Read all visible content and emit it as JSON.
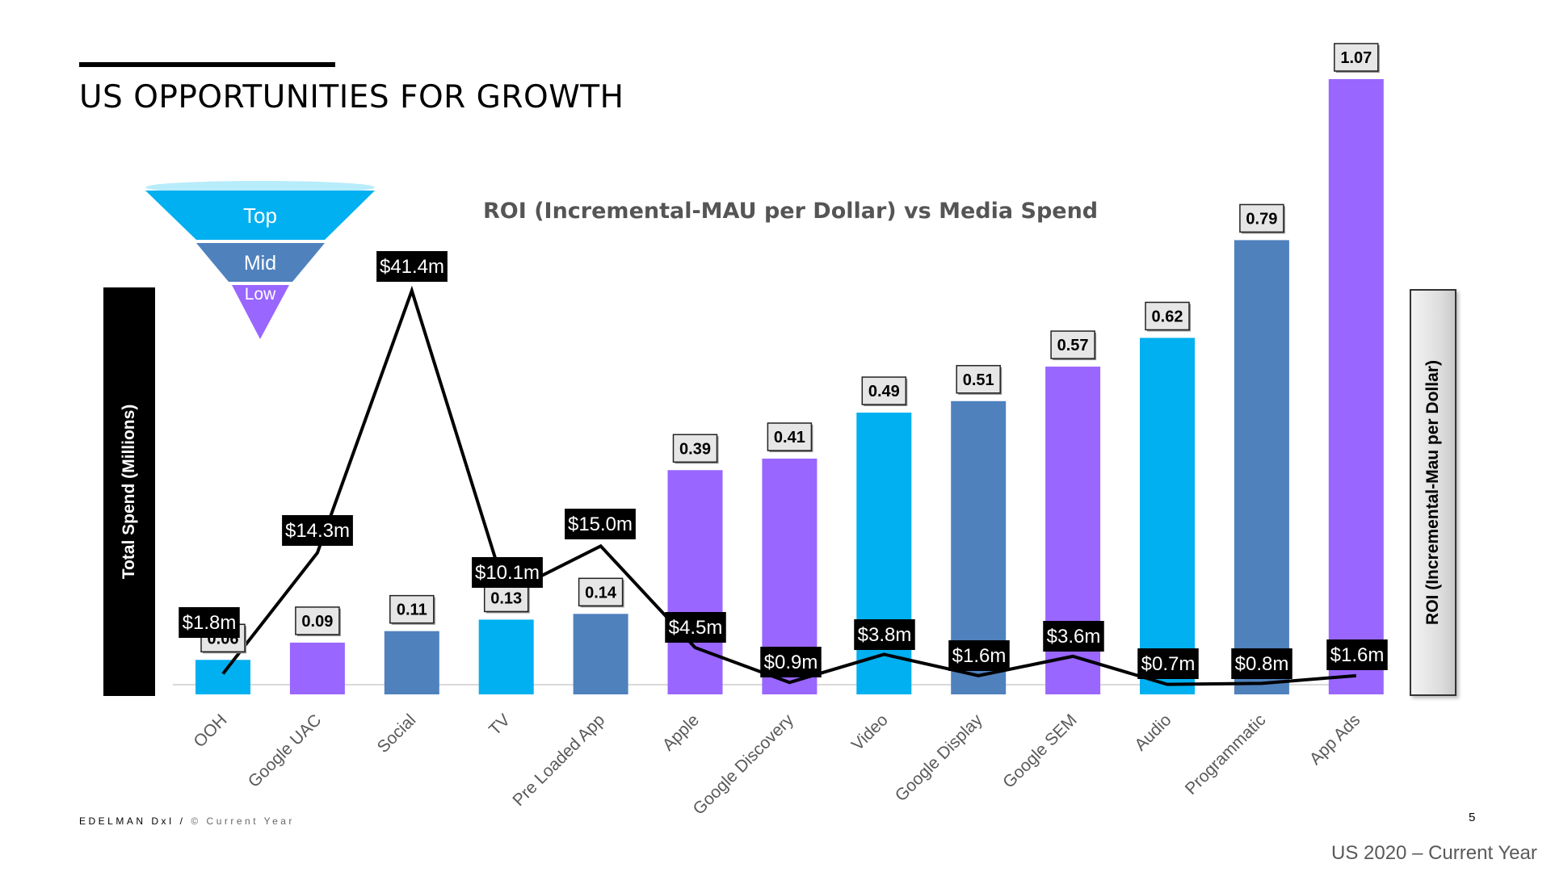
{
  "page": {
    "title": "US OPPORTUNITIES FOR GROWTH",
    "footer_brand": "EDELMAN DxI /",
    "footer_copyright": "© Current Year",
    "page_number": "5",
    "footer_note": "US 2020 – Current Year"
  },
  "funnel": {
    "levels": [
      "Top",
      "Mid",
      "Low"
    ],
    "colors": [
      "#00b0f0",
      "#4f81bd",
      "#9966ff"
    ]
  },
  "colors": {
    "top": "#00b0f0",
    "mid": "#4f81bd",
    "low": "#9966ff",
    "line": "#000000",
    "title": "#555555"
  },
  "chart_data": {
    "type": "bar",
    "title": "ROI (Incremental-MAU per Dollar) vs Media Spend",
    "left_axis_label": "Total Spend (Millions)",
    "right_axis_label": "ROI (Incremental-Mau per Dollar)",
    "categories": [
      "OOH",
      "Google UAC",
      "Social",
      "TV",
      "Pre Loaded App",
      "Apple",
      "Google Discovery",
      "Video",
      "Google Display",
      "Google SEM",
      "Audio",
      "Programmatic",
      "App Ads"
    ],
    "funnel_stage": [
      "Top",
      "Low",
      "Mid",
      "Top",
      "Mid",
      "Low",
      "Low",
      "Top",
      "Mid",
      "Low",
      "Top",
      "Mid",
      "Low"
    ],
    "series": [
      {
        "name": "ROI (Incremental-MAU per Dollar)",
        "type": "bar",
        "axis": "right",
        "values": [
          0.06,
          0.09,
          0.11,
          0.13,
          0.14,
          0.39,
          0.41,
          0.49,
          0.51,
          0.57,
          0.62,
          0.79,
          1.07
        ],
        "labels": [
          "0.06",
          "0.09",
          "0.11",
          "0.13",
          "0.14",
          "0.39",
          "0.41",
          "0.49",
          "0.51",
          "0.57",
          "0.62",
          "0.79",
          "1.07"
        ]
      },
      {
        "name": "Total Spend (Millions)",
        "type": "line",
        "axis": "left",
        "values": [
          1.8,
          14.3,
          41.4,
          10.1,
          15.0,
          4.5,
          0.9,
          3.8,
          1.6,
          3.6,
          0.7,
          0.8,
          1.6
        ],
        "labels": [
          "$1.8m",
          "$14.3m",
          "$41.4m",
          "$10.1m",
          "$15.0m",
          "$4.5m",
          "$0.9m",
          "$3.8m",
          "$1.6m",
          "$3.6m",
          "$0.7m",
          "$0.8m",
          "$1.6m"
        ]
      }
    ],
    "ylim_left": [
      0,
      42
    ],
    "ylim_right": [
      0,
      1.1
    ],
    "grid": false,
    "legend": "none"
  }
}
